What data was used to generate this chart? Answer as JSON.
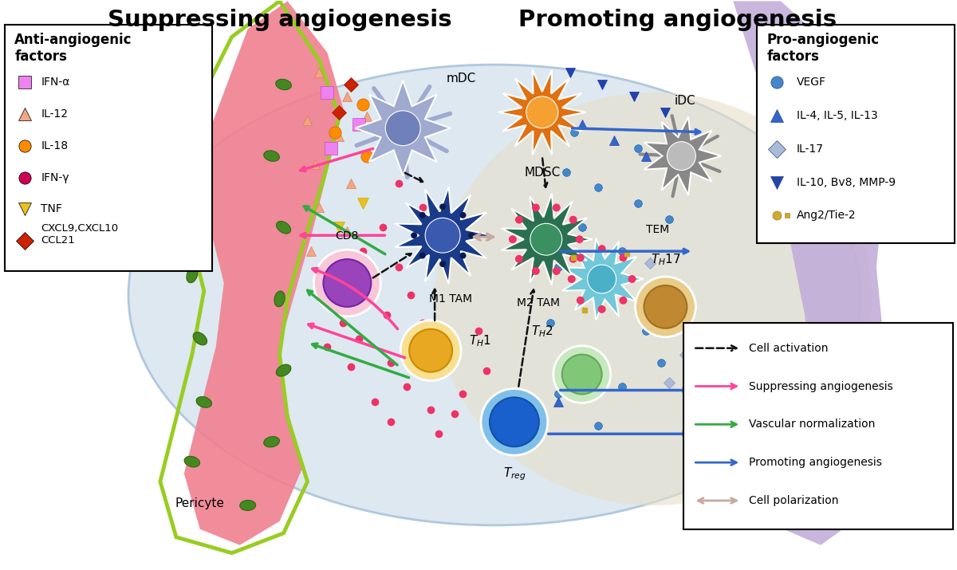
{
  "title_left": "Suppressing angiogenesis",
  "title_right": "Promoting angiogenesis",
  "title_fontsize": 21,
  "title_fontweight": "bold",
  "bg_color": "#ffffff",
  "left_box": {
    "title": "Anti-angiogenic\nfactors",
    "items": [
      {
        "label": "IFN-α",
        "marker": "s",
        "color": "#ee82ee"
      },
      {
        "label": "IL-12",
        "marker": "^",
        "color": "#f4a582"
      },
      {
        "label": "IL-18",
        "marker": "o",
        "color": "#ff8c00"
      },
      {
        "label": "IFN-γ",
        "marker": "o",
        "color": "#cc0052"
      },
      {
        "label": "TNF",
        "marker": "v",
        "color": "#e8c020"
      },
      {
        "label": "CXCL9,CXCL10\nCCL21",
        "marker": "D",
        "color": "#cc2200"
      }
    ]
  },
  "right_box": {
    "title": "Pro-angiogenic\nfactors",
    "items": [
      {
        "label": "VEGF",
        "marker": "o",
        "color": "#4488cc"
      },
      {
        "label": "IL-4, IL-5, IL-13",
        "marker": "^",
        "color": "#3366cc"
      },
      {
        "label": "IL-17",
        "marker": "D",
        "color": "#aabbd8"
      },
      {
        "label": "IL-10, Bv8, MMP-9",
        "marker": "v",
        "color": "#2244aa"
      },
      {
        "label": "Ang2/Tie-2",
        "marker": "8",
        "color": "#ccaa33"
      }
    ]
  },
  "legend_box": {
    "items": [
      {
        "label": "Cell activation",
        "style": "dashed",
        "color": "#111111"
      },
      {
        "label": "Suppressing angiogenesis",
        "style": "solid",
        "color": "#ff4499"
      },
      {
        "label": "Vascular normalization",
        "style": "solid",
        "color": "#33aa44"
      },
      {
        "label": "Promoting angiogenesis",
        "style": "solid",
        "color": "#3366cc"
      },
      {
        "label": "Cell polarization",
        "style": "bidir",
        "color": "#c8a8a0"
      }
    ]
  }
}
